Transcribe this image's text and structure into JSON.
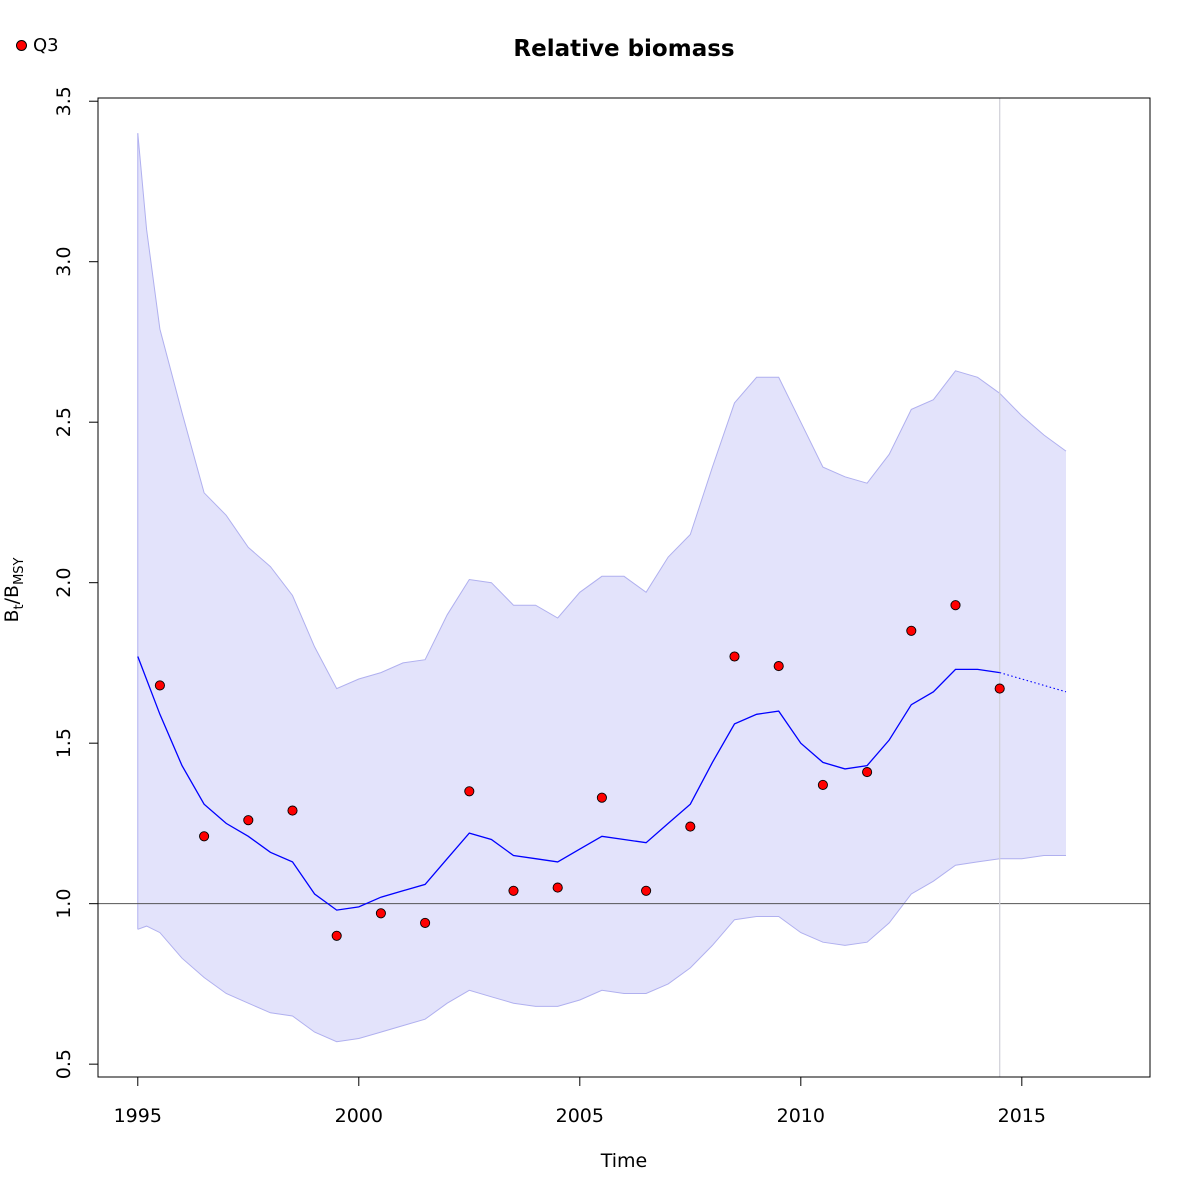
{
  "chart_data": {
    "type": "line",
    "title": "Relative biomass",
    "xlabel": "Time",
    "ylabel": {
      "main": "B",
      "sub1": "t",
      "sep": "/B",
      "sub2": "MSY"
    },
    "xlim": [
      1994.1,
      2017.9
    ],
    "ylim": [
      0.46,
      3.51
    ],
    "xticks": [
      1995,
      2000,
      2005,
      2010,
      2015
    ],
    "yticks": [
      0.5,
      1.0,
      1.5,
      2.0,
      2.5,
      3.0,
      3.5
    ],
    "ytick_labels": [
      "0.5",
      "1.0",
      "1.5",
      "2.0",
      "2.5",
      "3.0",
      "3.5"
    ],
    "reference_line_y": 1.0,
    "reference_line_x": 2014.5,
    "legend": {
      "position": "top-left",
      "entries": [
        {
          "name": "Q3",
          "marker": "circle",
          "color": "#ff0000"
        }
      ]
    },
    "colors": {
      "line": "#0000ff",
      "band": "#e3e3fb",
      "band_edge": "#b0b0ef",
      "points": "#ff0000",
      "vline": "#d0d0d8",
      "hline": "#555555"
    },
    "estimate": {
      "x": [
        1995.0,
        1995.5,
        1996.0,
        1996.5,
        1997.0,
        1997.5,
        1998.0,
        1998.5,
        1999.0,
        1999.5,
        2000.0,
        2000.5,
        2001.0,
        2001.5,
        2002.0,
        2002.5,
        2003.0,
        2003.5,
        2004.0,
        2004.5,
        2005.0,
        2005.5,
        2006.0,
        2006.5,
        2007.0,
        2007.5,
        2008.0,
        2008.5,
        2009.0,
        2009.5,
        2010.0,
        2010.5,
        2011.0,
        2011.5,
        2012.0,
        2012.5,
        2013.0,
        2013.5,
        2014.0,
        2014.5
      ],
      "y": [
        1.77,
        1.59,
        1.43,
        1.31,
        1.25,
        1.21,
        1.16,
        1.13,
        1.03,
        0.98,
        0.99,
        1.02,
        1.04,
        1.06,
        1.14,
        1.22,
        1.2,
        1.15,
        1.14,
        1.13,
        1.17,
        1.21,
        1.2,
        1.19,
        1.25,
        1.31,
        1.44,
        1.56,
        1.59,
        1.6,
        1.5,
        1.44,
        1.42,
        1.43,
        1.51,
        1.62,
        1.66,
        1.73,
        1.73,
        1.72
      ]
    },
    "forecast": {
      "x": [
        2014.5,
        2015.0,
        2015.5,
        2016.0
      ],
      "y": [
        1.72,
        1.7,
        1.68,
        1.66
      ]
    },
    "ci_band": {
      "x": [
        1995.0,
        1995.2,
        1995.5,
        1996.0,
        1996.5,
        1997.0,
        1997.5,
        1998.0,
        1998.5,
        1999.0,
        1999.5,
        2000.0,
        2000.5,
        2001.0,
        2001.5,
        2002.0,
        2002.5,
        2003.0,
        2003.5,
        2004.0,
        2004.5,
        2005.0,
        2005.5,
        2006.0,
        2006.5,
        2007.0,
        2007.5,
        2008.0,
        2008.5,
        2009.0,
        2009.5,
        2010.0,
        2010.5,
        2011.0,
        2011.5,
        2012.0,
        2012.5,
        2013.0,
        2013.5,
        2014.0,
        2014.5,
        2015.0,
        2015.5,
        2016.0
      ],
      "lower": [
        0.92,
        0.93,
        0.91,
        0.83,
        0.77,
        0.72,
        0.69,
        0.66,
        0.65,
        0.6,
        0.57,
        0.58,
        0.6,
        0.62,
        0.64,
        0.69,
        0.73,
        0.71,
        0.69,
        0.68,
        0.68,
        0.7,
        0.73,
        0.72,
        0.72,
        0.75,
        0.8,
        0.87,
        0.95,
        0.96,
        0.96,
        0.91,
        0.88,
        0.87,
        0.88,
        0.94,
        1.03,
        1.07,
        1.12,
        1.13,
        1.14,
        1.14,
        1.15,
        1.15
      ],
      "upper": [
        3.4,
        3.1,
        2.79,
        2.53,
        2.28,
        2.21,
        2.11,
        2.05,
        1.96,
        1.8,
        1.67,
        1.7,
        1.72,
        1.75,
        1.76,
        1.9,
        2.01,
        2.0,
        1.93,
        1.93,
        1.89,
        1.97,
        2.02,
        2.02,
        1.97,
        2.08,
        2.15,
        2.36,
        2.56,
        2.64,
        2.64,
        2.5,
        2.36,
        2.33,
        2.31,
        2.4,
        2.54,
        2.57,
        2.66,
        2.64,
        2.59,
        2.52,
        2.46,
        2.41
      ]
    },
    "observations": {
      "name": "Q3",
      "x": [
        1995.5,
        1996.5,
        1997.5,
        1998.5,
        1999.5,
        2000.5,
        2001.5,
        2002.5,
        2003.5,
        2004.5,
        2005.5,
        2006.5,
        2007.5,
        2008.5,
        2009.5,
        2010.5,
        2011.5,
        2012.5,
        2013.5,
        2014.5
      ],
      "y": [
        1.68,
        1.21,
        1.26,
        1.29,
        0.9,
        0.97,
        0.94,
        1.35,
        1.04,
        1.05,
        1.33,
        1.04,
        1.24,
        1.77,
        1.74,
        1.37,
        1.41,
        1.85,
        1.93,
        1.67
      ]
    }
  }
}
